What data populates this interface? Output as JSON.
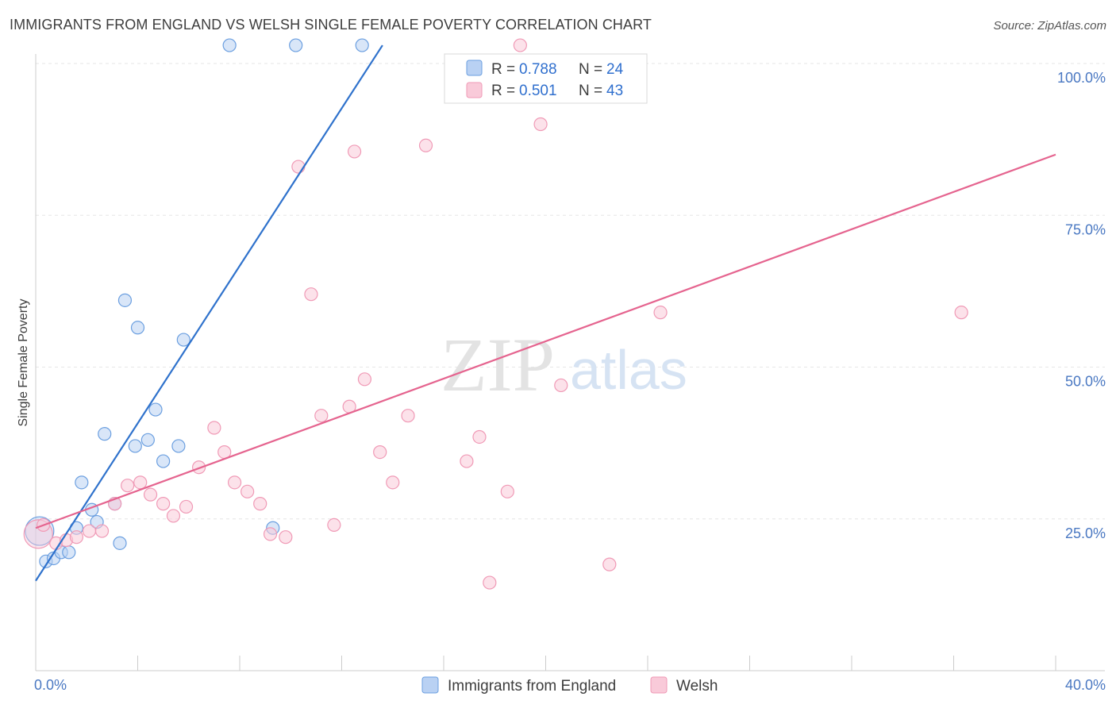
{
  "title": "IMMIGRANTS FROM ENGLAND VS WELSH SINGLE FEMALE POVERTY CORRELATION CHART",
  "source": "Source: ZipAtlas.com",
  "watermark": {
    "zip": "ZIP",
    "atlas": "atlas"
  },
  "chart_data": {
    "type": "scatter",
    "xlabel": "",
    "ylabel": "Single Female Poverty",
    "xlim": [
      0,
      40
    ],
    "ylim": [
      0,
      105
    ],
    "x_tick_labels": {
      "min": "0.0%",
      "max": "40.0%"
    },
    "y_ticks": [
      25,
      50,
      75,
      100
    ],
    "y_tick_labels": [
      "25.0%",
      "50.0%",
      "75.0%",
      "100.0%"
    ],
    "grid": true,
    "legend": {
      "placement": "top-center",
      "rows": [
        {
          "r_label": "R =",
          "r_value": "0.788",
          "n_label": "N =",
          "n_value": "24"
        },
        {
          "r_label": "R =",
          "r_value": "0.501",
          "n_label": "N =",
          "n_value": "43"
        }
      ]
    },
    "series": [
      {
        "name": "Immigrants from England",
        "color": "#6b9fe0",
        "fill": "#b9d1f3",
        "line_color": "#2f72cc",
        "trend": {
          "x": [
            0,
            13.6
          ],
          "y": [
            14.8,
            103
          ]
        },
        "points": [
          {
            "x": 0.15,
            "y": 23.0
          },
          {
            "x": 0.4,
            "y": 18.0
          },
          {
            "x": 0.7,
            "y": 18.5
          },
          {
            "x": 1.0,
            "y": 19.5
          },
          {
            "x": 1.3,
            "y": 19.5
          },
          {
            "x": 1.6,
            "y": 23.5
          },
          {
            "x": 1.8,
            "y": 31.0
          },
          {
            "x": 2.2,
            "y": 26.5
          },
          {
            "x": 2.4,
            "y": 24.5
          },
          {
            "x": 2.7,
            "y": 39.0
          },
          {
            "x": 3.1,
            "y": 27.5
          },
          {
            "x": 3.3,
            "y": 21.0
          },
          {
            "x": 3.5,
            "y": 61.0
          },
          {
            "x": 3.9,
            "y": 37.0
          },
          {
            "x": 4.0,
            "y": 56.5
          },
          {
            "x": 4.4,
            "y": 38.0
          },
          {
            "x": 4.7,
            "y": 43.0
          },
          {
            "x": 5.0,
            "y": 34.5
          },
          {
            "x": 5.6,
            "y": 37.0
          },
          {
            "x": 5.8,
            "y": 54.5
          },
          {
            "x": 7.6,
            "y": 103.0
          },
          {
            "x": 9.3,
            "y": 23.5
          },
          {
            "x": 10.2,
            "y": 103.0
          },
          {
            "x": 12.8,
            "y": 103.0
          }
        ]
      },
      {
        "name": "Welsh",
        "color": "#f09ab6",
        "fill": "#f9cad9",
        "line_color": "#e5648f",
        "trend": {
          "x": [
            0,
            40
          ],
          "y": [
            23.5,
            85
          ]
        },
        "points": [
          {
            "x": 0.1,
            "y": 22.5
          },
          {
            "x": 0.3,
            "y": 24.0
          },
          {
            "x": 0.8,
            "y": 21.0
          },
          {
            "x": 1.2,
            "y": 21.5
          },
          {
            "x": 1.6,
            "y": 22.0
          },
          {
            "x": 2.1,
            "y": 23.0
          },
          {
            "x": 2.6,
            "y": 23.0
          },
          {
            "x": 3.1,
            "y": 27.5
          },
          {
            "x": 3.6,
            "y": 30.5
          },
          {
            "x": 4.1,
            "y": 31.0
          },
          {
            "x": 4.5,
            "y": 29.0
          },
          {
            "x": 5.0,
            "y": 27.5
          },
          {
            "x": 5.4,
            "y": 25.5
          },
          {
            "x": 5.9,
            "y": 27.0
          },
          {
            "x": 6.4,
            "y": 33.5
          },
          {
            "x": 7.0,
            "y": 40.0
          },
          {
            "x": 7.4,
            "y": 36.0
          },
          {
            "x": 7.8,
            "y": 31.0
          },
          {
            "x": 8.3,
            "y": 29.5
          },
          {
            "x": 8.8,
            "y": 27.5
          },
          {
            "x": 9.2,
            "y": 22.5
          },
          {
            "x": 9.8,
            "y": 22.0
          },
          {
            "x": 10.3,
            "y": 83.0
          },
          {
            "x": 10.8,
            "y": 62.0
          },
          {
            "x": 11.2,
            "y": 42.0
          },
          {
            "x": 11.7,
            "y": 24.0
          },
          {
            "x": 12.3,
            "y": 43.5
          },
          {
            "x": 12.5,
            "y": 85.5
          },
          {
            "x": 12.9,
            "y": 48.0
          },
          {
            "x": 13.5,
            "y": 36.0
          },
          {
            "x": 14.0,
            "y": 31.0
          },
          {
            "x": 14.6,
            "y": 42.0
          },
          {
            "x": 15.3,
            "y": 86.5
          },
          {
            "x": 16.9,
            "y": 34.5
          },
          {
            "x": 17.4,
            "y": 38.5
          },
          {
            "x": 17.8,
            "y": 14.5
          },
          {
            "x": 18.5,
            "y": 29.5
          },
          {
            "x": 19.0,
            "y": 103.0
          },
          {
            "x": 19.8,
            "y": 90.0
          },
          {
            "x": 20.6,
            "y": 47.0
          },
          {
            "x": 22.5,
            "y": 17.5
          },
          {
            "x": 24.5,
            "y": 59.0
          },
          {
            "x": 36.3,
            "y": 59.0
          }
        ]
      }
    ]
  }
}
